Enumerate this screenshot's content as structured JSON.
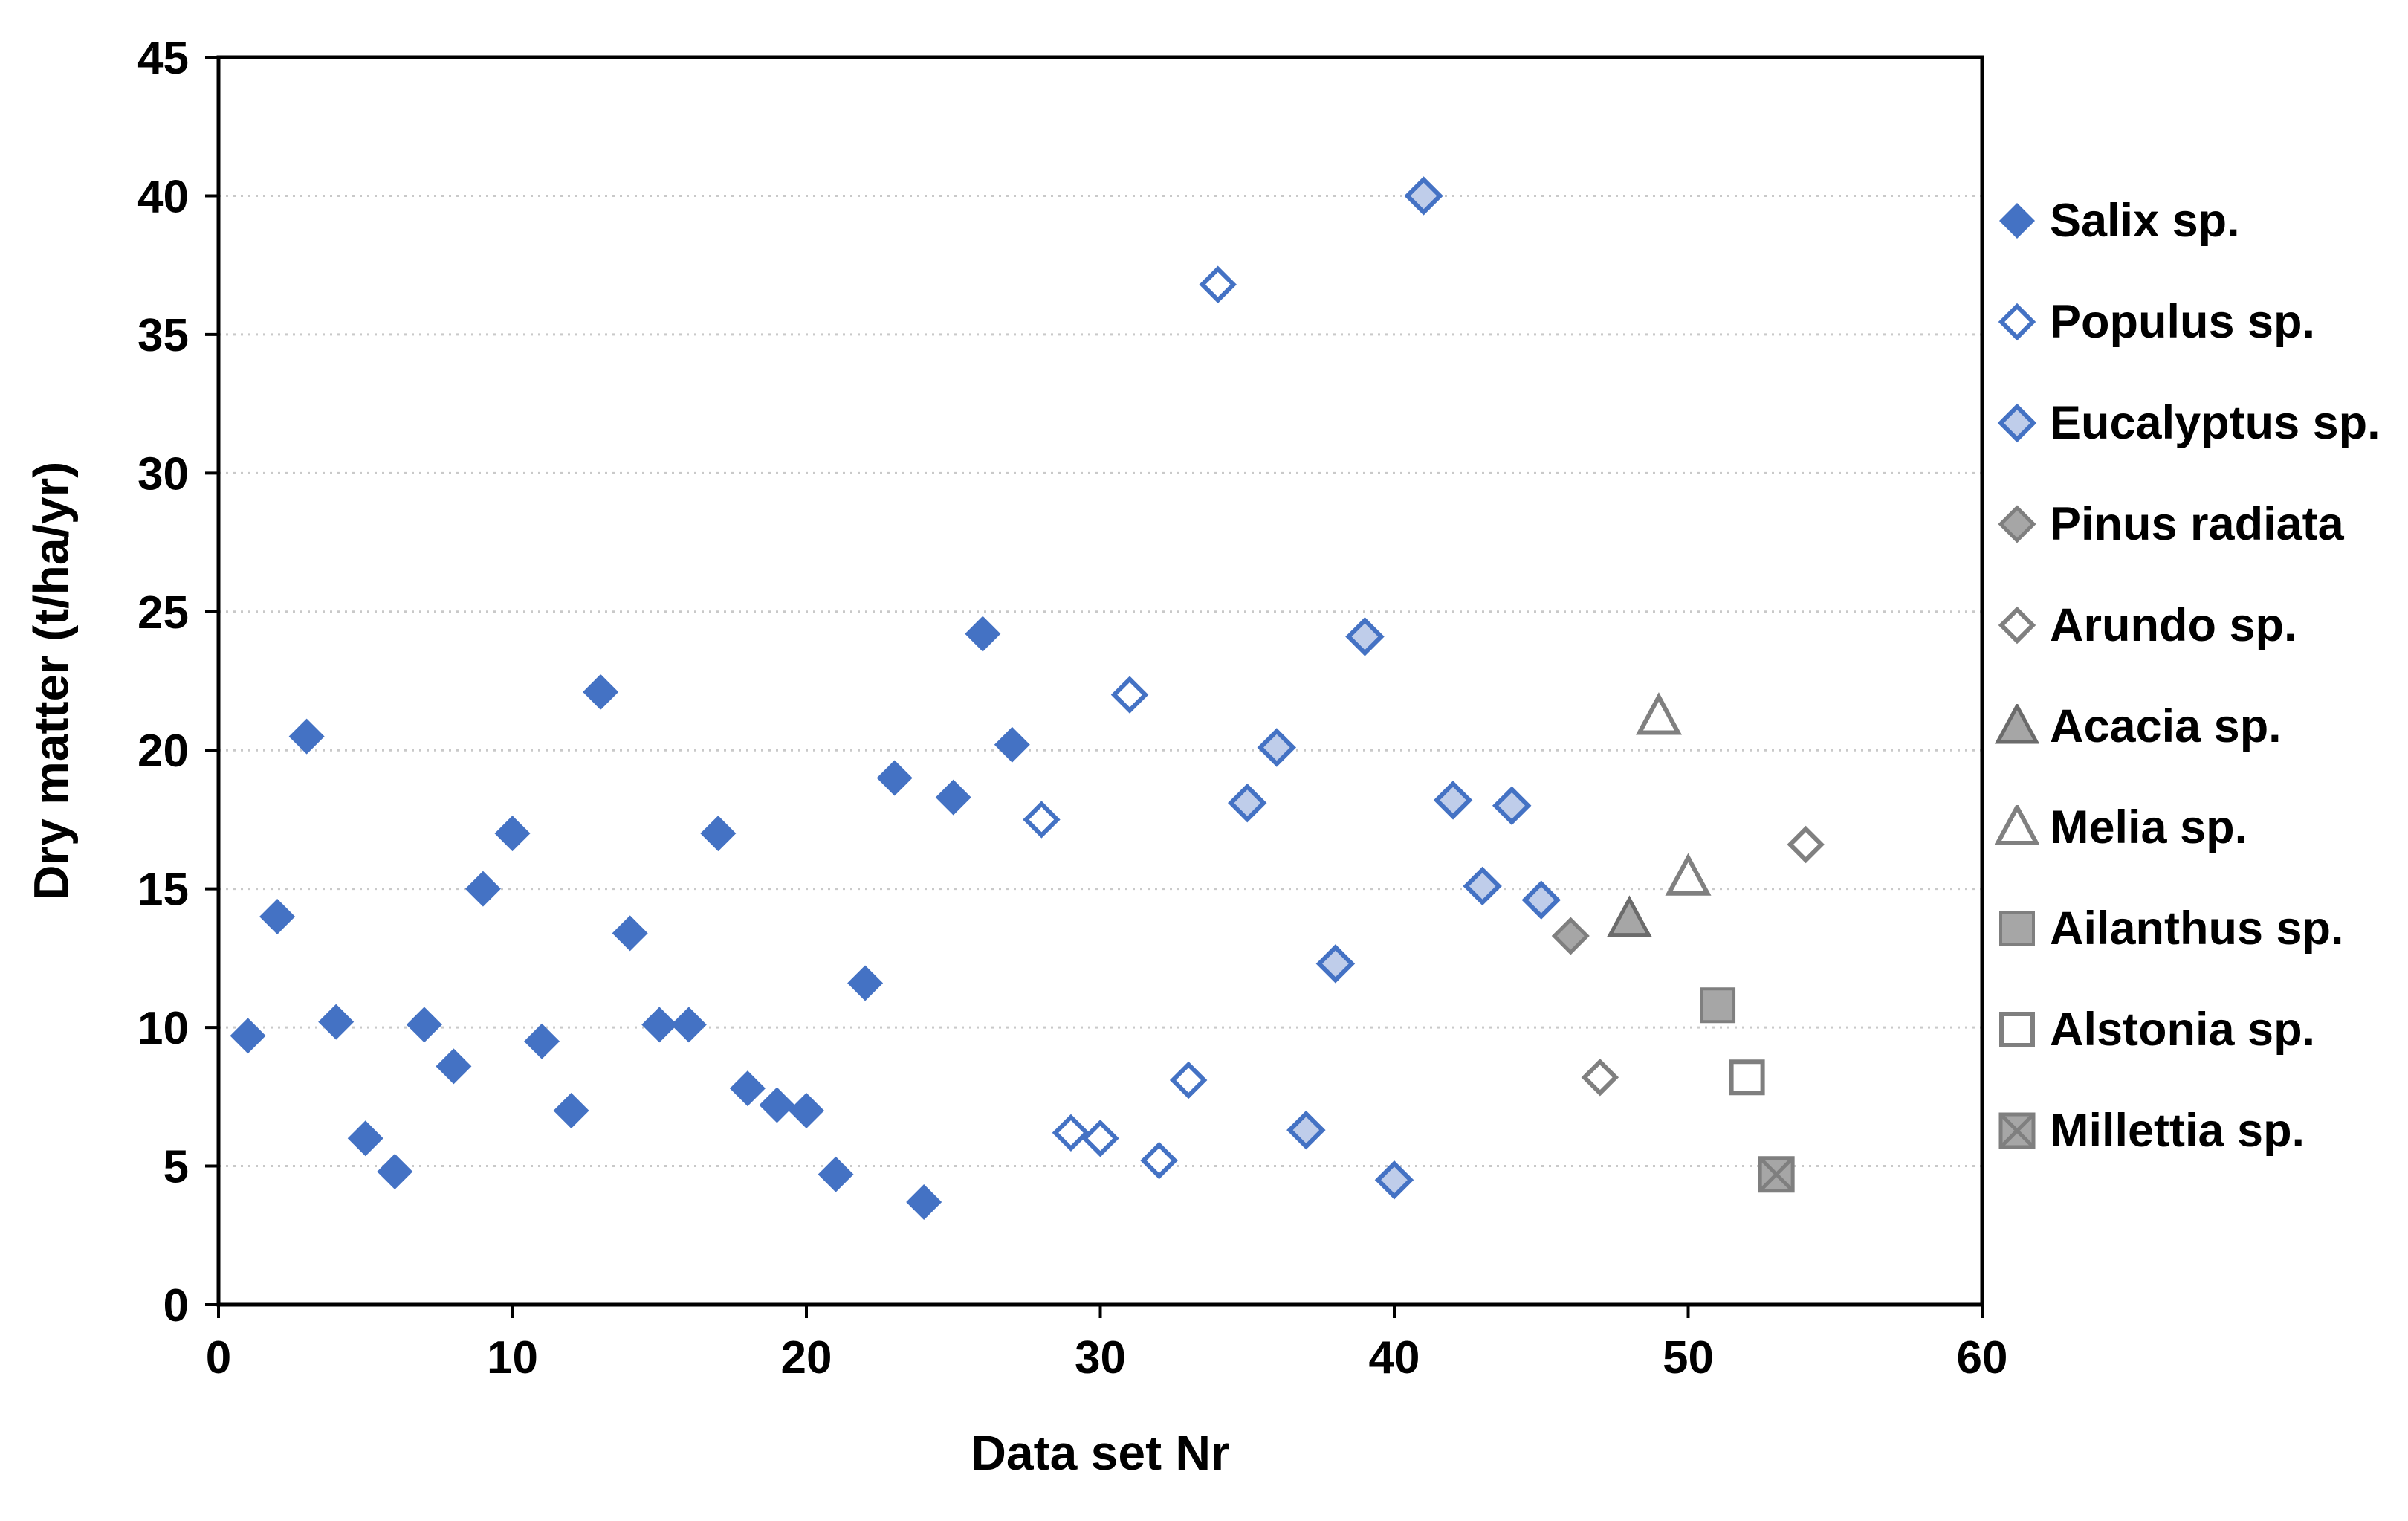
{
  "chart_data": {
    "type": "scatter",
    "title": "",
    "xlabel": "Data set Nr",
    "ylabel": "Dry matter (t/ha/yr)",
    "xlim": [
      0,
      60
    ],
    "ylim": [
      0,
      45
    ],
    "x_ticks": [
      0,
      10,
      20,
      30,
      40,
      50,
      60
    ],
    "y_ticks": [
      0,
      5,
      10,
      15,
      20,
      25,
      30,
      35,
      40,
      45
    ],
    "grid": "horizontal-dotted",
    "legend_position": "right",
    "colors": {
      "blue": "#4472C4",
      "light_blue_fill": "#BFCDEA",
      "gray_fill": "#A6A6A6",
      "gray_stroke": "#7F7F7F",
      "grid_color": "#C9C9C9",
      "axis_color": "#000000",
      "text_color": "#000000"
    },
    "series": [
      {
        "name": "Salix sp.",
        "marker": "diamond-filled",
        "fill": "#4472C4",
        "stroke": "#4472C4",
        "points": [
          [
            1,
            9.7
          ],
          [
            2,
            14
          ],
          [
            3,
            20.5
          ],
          [
            4,
            10.2
          ],
          [
            5,
            6
          ],
          [
            6,
            4.8
          ],
          [
            7,
            10.1
          ],
          [
            8,
            8.6
          ],
          [
            9,
            15
          ],
          [
            10,
            17
          ],
          [
            11,
            9.5
          ],
          [
            12,
            7
          ],
          [
            13,
            22.1
          ],
          [
            14,
            13.4
          ],
          [
            15,
            10.1
          ],
          [
            16,
            10.1
          ],
          [
            17,
            17
          ],
          [
            18,
            7.8
          ],
          [
            19,
            7.2
          ],
          [
            20,
            7
          ],
          [
            21,
            4.7
          ],
          [
            22,
            11.6
          ],
          [
            23,
            19
          ],
          [
            24,
            3.7
          ],
          [
            25,
            18.3
          ],
          [
            26,
            24.2
          ],
          [
            27,
            20.2
          ]
        ]
      },
      {
        "name": "Populus sp.",
        "marker": "diamond-hollow",
        "fill": "#FFFFFF",
        "stroke": "#4472C4",
        "points": [
          [
            28,
            17.5
          ],
          [
            29,
            6.2
          ],
          [
            30,
            6
          ],
          [
            31,
            22
          ],
          [
            32,
            5.2
          ],
          [
            33,
            8.1
          ],
          [
            34,
            36.8
          ]
        ]
      },
      {
        "name": "Eucalyptus sp.",
        "marker": "diamond-light",
        "fill": "#BFCDEA",
        "stroke": "#4472C4",
        "points": [
          [
            35,
            18.1
          ],
          [
            36,
            20.1
          ],
          [
            37,
            6.3
          ],
          [
            38,
            12.3
          ],
          [
            39,
            24.1
          ],
          [
            40,
            4.5
          ],
          [
            41,
            40
          ],
          [
            42,
            18.2
          ],
          [
            43,
            15.1
          ],
          [
            44,
            18
          ],
          [
            45,
            14.6
          ]
        ]
      },
      {
        "name": "Pinus radiata",
        "marker": "diamond-gray",
        "fill": "#A6A6A6",
        "stroke": "#7F7F7F",
        "points": [
          [
            46,
            13.3
          ]
        ]
      },
      {
        "name": "Arundo sp.",
        "marker": "diamond-hollow-gray",
        "fill": "#FFFFFF",
        "stroke": "#808080",
        "points": [
          [
            47,
            8.2
          ],
          [
            54,
            16.6
          ]
        ]
      },
      {
        "name": "Acacia sp.",
        "marker": "triangle-filled",
        "fill": "#A6A6A6",
        "stroke": "#6B6B6B",
        "points": [
          [
            48,
            13.9
          ]
        ]
      },
      {
        "name": "Melia sp.",
        "marker": "triangle-hollow",
        "fill": "#FFFFFF",
        "stroke": "#808080",
        "points": [
          [
            49,
            21.2
          ],
          [
            50,
            15.4
          ]
        ]
      },
      {
        "name": "Ailanthus sp.",
        "marker": "square-filled",
        "fill": "#A6A6A6",
        "stroke": "#7F7F7F",
        "points": [
          [
            51,
            10.8
          ]
        ]
      },
      {
        "name": "Alstonia sp.",
        "marker": "square-hollow",
        "fill": "#FFFFFF",
        "stroke": "#7F7F7F",
        "points": [
          [
            52,
            8.2
          ]
        ]
      },
      {
        "name": "Millettia sp.",
        "marker": "square-x",
        "fill": "#A6A6A6",
        "stroke": "#7F7F7F",
        "points": [
          [
            53,
            4.7
          ]
        ]
      }
    ]
  }
}
